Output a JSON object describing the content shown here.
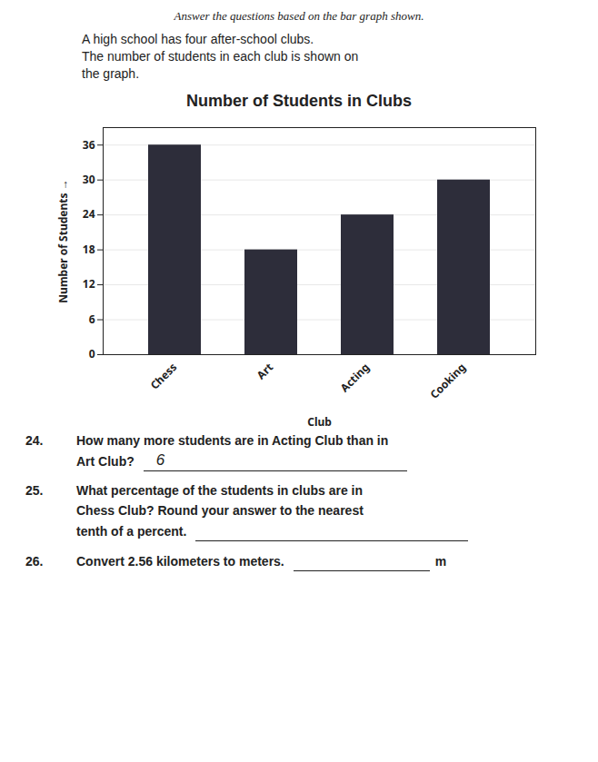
{
  "chart_data": {
    "type": "bar",
    "title": "Number of Students in Clubs",
    "categories": [
      "Chess",
      "Art",
      "Acting",
      "Cooking"
    ],
    "values": [
      36,
      18,
      24,
      30
    ],
    "color": "#2d2d3a",
    "xlabel": "Club",
    "ylabel": "Number of Students",
    "ylim": [
      0,
      39
    ],
    "yticks": [
      0,
      6,
      12,
      18,
      24,
      30,
      36
    ],
    "grid": true,
    "annotations": [
      "Answer the questions based on the bar graph shown.",
      "A high school has four after-school clubs.",
      "The number of students in each club is shown on",
      "the graph.",
      "24.",
      "How many more students are in Acting Club than in",
      "Art Club?",
      "6",
      "25.",
      "What percentage of the students in clubs are in",
      "Chess Club? Round your answer to the nearest",
      "tenth of a percent.",
      "26.",
      "Convert 2.56 kilometers to meters.",
      "m"
    ]
  }
}
